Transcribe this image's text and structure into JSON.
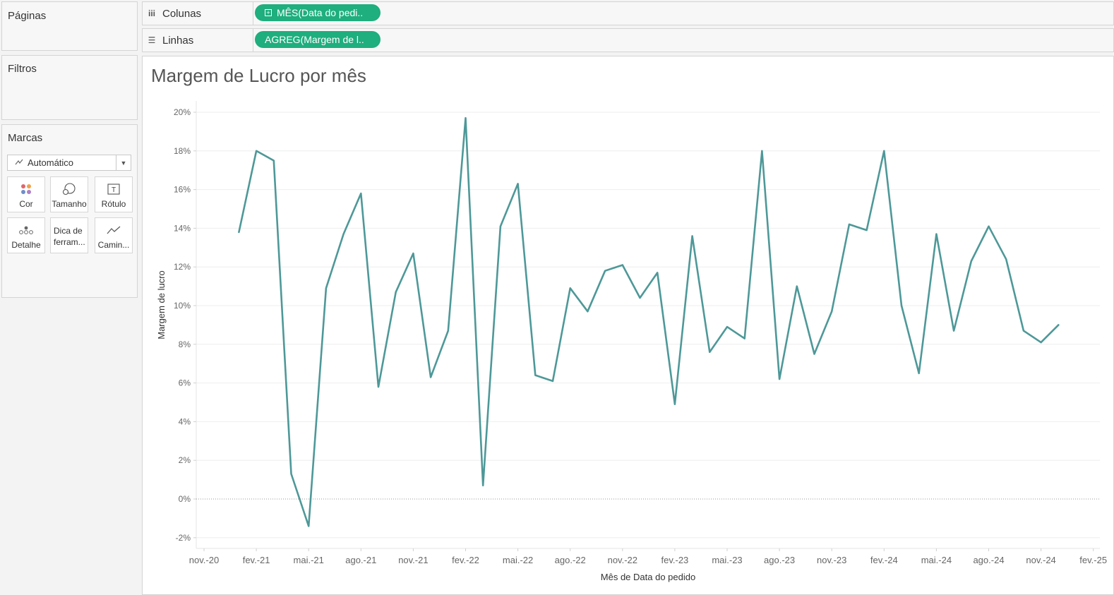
{
  "pages_panel": {
    "title": "Páginas"
  },
  "filters_panel": {
    "title": "Filtros"
  },
  "marks_panel": {
    "title": "Marcas",
    "mark_type": "Automático",
    "buttons": [
      {
        "label": "Cor",
        "icon": "color-dots-icon"
      },
      {
        "label": "Tamanho",
        "icon": "size-icon"
      },
      {
        "label": "Rótulo",
        "icon": "label-text-icon"
      },
      {
        "label": "Detalhe",
        "icon": "detail-dots-icon"
      },
      {
        "label": "Dica de ferram...",
        "icon": "tooltip-icon"
      },
      {
        "label": "Camin...",
        "icon": "path-line-icon"
      }
    ]
  },
  "columns_shelf": {
    "label": "Colunas",
    "pill": "MÊS(Data do pedi.."
  },
  "rows_shelf": {
    "label": "Linhas",
    "pill": "AGREG(Margem de l.."
  },
  "colors": {
    "line": "#4e9898",
    "pill": "#1fae7e"
  },
  "chart_data": {
    "type": "line",
    "title": "Margem de Lucro por mês",
    "xlabel": "Mês de Data do pedido",
    "ylabel": "Margem de lucro",
    "ylim": [
      -2.5,
      20.5
    ],
    "yticks": [
      -2,
      0,
      2,
      4,
      6,
      8,
      10,
      12,
      14,
      16,
      18,
      20
    ],
    "ytick_labels": [
      "-2%",
      "0%",
      "2%",
      "4%",
      "6%",
      "8%",
      "10%",
      "12%",
      "14%",
      "16%",
      "18%",
      "20%"
    ],
    "xtick_labels": [
      "nov.-20",
      "fev.-21",
      "mai.-21",
      "ago.-21",
      "nov.-21",
      "fev.-22",
      "mai.-22",
      "ago.-22",
      "nov.-22",
      "fev.-23",
      "mai.-23",
      "ago.-23",
      "nov.-23",
      "fev.-24",
      "mai.-24",
      "ago.-24",
      "nov.-24",
      "fev.-25"
    ],
    "xtick_start": "2020-11",
    "grid": true,
    "zero_line": true,
    "series": [
      {
        "x": [
          "2021-01",
          "2021-02",
          "2021-03",
          "2021-04",
          "2021-05",
          "2021-06",
          "2021-07",
          "2021-08",
          "2021-09",
          "2021-10",
          "2021-11",
          "2021-12",
          "2022-01",
          "2022-02",
          "2022-03",
          "2022-04",
          "2022-05",
          "2022-06",
          "2022-07",
          "2022-08",
          "2022-09",
          "2022-10",
          "2022-11",
          "2022-12",
          "2023-01",
          "2023-02",
          "2023-03",
          "2023-04",
          "2023-05",
          "2023-06",
          "2023-07",
          "2023-08",
          "2023-09",
          "2023-10",
          "2023-11",
          "2023-12",
          "2024-01",
          "2024-02",
          "2024-03",
          "2024-04",
          "2024-05",
          "2024-06",
          "2024-07",
          "2024-08",
          "2024-09",
          "2024-10",
          "2024-11",
          "2024-12"
        ],
        "values": [
          13.8,
          18.0,
          17.5,
          1.3,
          -1.4,
          10.9,
          13.7,
          15.8,
          5.8,
          10.7,
          12.7,
          6.3,
          8.7,
          19.7,
          0.7,
          14.1,
          16.3,
          6.4,
          6.1,
          10.9,
          9.7,
          11.8,
          12.1,
          10.4,
          11.7,
          4.9,
          13.6,
          7.6,
          8.9,
          8.3,
          18.0,
          6.2,
          11.0,
          7.5,
          9.7,
          14.2,
          13.9,
          18.0,
          10.0,
          6.5,
          13.7,
          8.7,
          12.3,
          14.1,
          12.4,
          8.7,
          8.1,
          9.0
        ]
      }
    ]
  }
}
